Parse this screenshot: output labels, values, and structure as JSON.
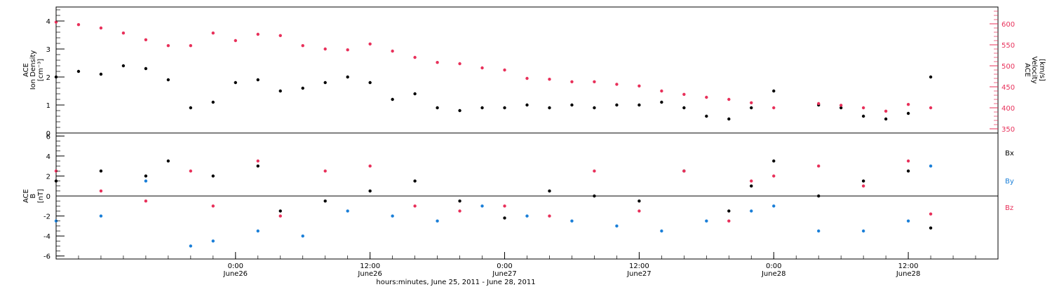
{
  "colors": {
    "density": "#000000",
    "velocity": "#e8305a",
    "bx": "#000000",
    "by": "#1a7fd8",
    "bz": "#e8305a"
  },
  "xaxis": {
    "label": "hours:minutes, June 25, 2011 - June 28, 2011",
    "range": [
      "2011-06-25 08:00",
      "2011-06-28 20:00"
    ],
    "ticks": [
      {
        "time": "2011-06-26 00:00",
        "line1": "0:00",
        "line2": "June26"
      },
      {
        "time": "2011-06-26 12:00",
        "line1": "12:00",
        "line2": "June26"
      },
      {
        "time": "2011-06-27 00:00",
        "line1": "0:00",
        "line2": "June27"
      },
      {
        "time": "2011-06-27 12:00",
        "line1": "12:00",
        "line2": "June27"
      },
      {
        "time": "2011-06-28 00:00",
        "line1": "0:00",
        "line2": "June28"
      },
      {
        "time": "2011-06-28 12:00",
        "line1": "12:00",
        "line2": "June28"
      }
    ]
  },
  "chart_data": [
    {
      "type": "scatter",
      "panel": "top",
      "ylabel_left": [
        "ACE",
        "Ion Density",
        "[cm⁻³]"
      ],
      "ylabel_right": [
        "ACE",
        "Velocity",
        "[km/s]"
      ],
      "ylim_left": [
        0,
        4.5
      ],
      "yticks_left": [
        "0",
        "1",
        "2",
        "3",
        "4"
      ],
      "ylim_right": [
        340,
        640
      ],
      "yticks_right": [
        "350",
        "400",
        "450",
        "500",
        "550",
        "600"
      ],
      "series": [
        {
          "axis": "left",
          "points": [
            [
              "2011-06-25 08:00",
              2.0
            ],
            [
              "2011-06-25 10:00",
              2.2
            ],
            [
              "2011-06-25 12:00",
              2.1
            ],
            [
              "2011-06-25 14:00",
              2.4
            ],
            [
              "2011-06-25 16:00",
              2.3
            ],
            [
              "2011-06-25 18:00",
              1.9
            ],
            [
              "2011-06-25 20:00",
              0.9
            ],
            [
              "2011-06-25 22:00",
              1.1
            ],
            [
              "2011-06-26 00:00",
              1.8
            ],
            [
              "2011-06-26 02:00",
              1.9
            ],
            [
              "2011-06-26 04:00",
              1.5
            ],
            [
              "2011-06-26 06:00",
              1.6
            ],
            [
              "2011-06-26 08:00",
              1.8
            ],
            [
              "2011-06-26 10:00",
              2.0
            ],
            [
              "2011-06-26 12:00",
              1.8
            ],
            [
              "2011-06-26 14:00",
              1.2
            ],
            [
              "2011-06-26 16:00",
              1.4
            ],
            [
              "2011-06-26 18:00",
              0.9
            ],
            [
              "2011-06-26 20:00",
              0.8
            ],
            [
              "2011-06-26 22:00",
              0.9
            ],
            [
              "2011-06-27 00:00",
              0.9
            ],
            [
              "2011-06-27 02:00",
              1.0
            ],
            [
              "2011-06-27 04:00",
              0.9
            ],
            [
              "2011-06-27 06:00",
              1.0
            ],
            [
              "2011-06-27 08:00",
              0.9
            ],
            [
              "2011-06-27 10:00",
              1.0
            ],
            [
              "2011-06-27 12:00",
              1.0
            ],
            [
              "2011-06-27 14:00",
              1.1
            ],
            [
              "2011-06-27 16:00",
              0.9
            ],
            [
              "2011-06-27 18:00",
              0.6
            ],
            [
              "2011-06-27 20:00",
              0.5
            ],
            [
              "2011-06-27 22:00",
              0.9
            ],
            [
              "2011-06-28 00:00",
              1.5
            ],
            [
              "2011-06-28 04:00",
              1.0
            ],
            [
              "2011-06-28 06:00",
              0.9
            ],
            [
              "2011-06-28 08:00",
              0.6
            ],
            [
              "2011-06-28 10:00",
              0.5
            ],
            [
              "2011-06-28 12:00",
              0.7
            ],
            [
              "2011-06-28 14:00",
              2.0
            ]
          ]
        },
        {
          "axis": "right",
          "points": [
            [
              "2011-06-25 08:00",
              604
            ],
            [
              "2011-06-25 10:00",
              598
            ],
            [
              "2011-06-25 12:00",
              590
            ],
            [
              "2011-06-25 14:00",
              578
            ],
            [
              "2011-06-25 16:00",
              562
            ],
            [
              "2011-06-25 18:00",
              548
            ],
            [
              "2011-06-25 20:00",
              548
            ],
            [
              "2011-06-25 22:00",
              578
            ],
            [
              "2011-06-26 00:00",
              560
            ],
            [
              "2011-06-26 02:00",
              575
            ],
            [
              "2011-06-26 04:00",
              572
            ],
            [
              "2011-06-26 06:00",
              548
            ],
            [
              "2011-06-26 08:00",
              540
            ],
            [
              "2011-06-26 10:00",
              538
            ],
            [
              "2011-06-26 12:00",
              552
            ],
            [
              "2011-06-26 14:00",
              535
            ],
            [
              "2011-06-26 16:00",
              520
            ],
            [
              "2011-06-26 18:00",
              508
            ],
            [
              "2011-06-26 20:00",
              505
            ],
            [
              "2011-06-26 22:00",
              495
            ],
            [
              "2011-06-27 00:00",
              490
            ],
            [
              "2011-06-27 02:00",
              470
            ],
            [
              "2011-06-27 04:00",
              468
            ],
            [
              "2011-06-27 06:00",
              462
            ],
            [
              "2011-06-27 08:00",
              462
            ],
            [
              "2011-06-27 10:00",
              456
            ],
            [
              "2011-06-27 12:00",
              452
            ],
            [
              "2011-06-27 14:00",
              440
            ],
            [
              "2011-06-27 16:00",
              432
            ],
            [
              "2011-06-27 18:00",
              425
            ],
            [
              "2011-06-27 20:00",
              420
            ],
            [
              "2011-06-27 22:00",
              412
            ],
            [
              "2011-06-28 00:00",
              400
            ],
            [
              "2011-06-28 04:00",
              410
            ],
            [
              "2011-06-28 06:00",
              406
            ],
            [
              "2011-06-28 08:00",
              400
            ],
            [
              "2011-06-28 10:00",
              392
            ],
            [
              "2011-06-28 12:00",
              408
            ],
            [
              "2011-06-28 14:00",
              400
            ]
          ]
        }
      ]
    },
    {
      "type": "scatter",
      "panel": "bottom",
      "ylabel": [
        "ACE",
        "B",
        "[nT]"
      ],
      "ylim": [
        -6.3,
        6.3
      ],
      "yticks": [
        "-6",
        "-4",
        "-2",
        "0",
        "2",
        "4",
        "6"
      ],
      "series": [
        {
          "name": "Bx",
          "points": [
            [
              "2011-06-25 08:00",
              1.5
            ],
            [
              "2011-06-25 12:00",
              2.5
            ],
            [
              "2011-06-25 16:00",
              2.0
            ],
            [
              "2011-06-25 18:00",
              3.5
            ],
            [
              "2011-06-25 22:00",
              2.0
            ],
            [
              "2011-06-26 02:00",
              3.0
            ],
            [
              "2011-06-26 04:00",
              -1.5
            ],
            [
              "2011-06-26 08:00",
              -0.5
            ],
            [
              "2011-06-26 12:00",
              0.5
            ],
            [
              "2011-06-26 16:00",
              1.5
            ],
            [
              "2011-06-26 20:00",
              -0.5
            ],
            [
              "2011-06-27 00:00",
              -2.2
            ],
            [
              "2011-06-27 04:00",
              0.5
            ],
            [
              "2011-06-27 08:00",
              0.0
            ],
            [
              "2011-06-27 12:00",
              -0.5
            ],
            [
              "2011-06-27 16:00",
              2.5
            ],
            [
              "2011-06-27 20:00",
              -1.5
            ],
            [
              "2011-06-27 22:00",
              1.0
            ],
            [
              "2011-06-28 00:00",
              3.5
            ],
            [
              "2011-06-28 04:00",
              0.0
            ],
            [
              "2011-06-28 08:00",
              1.5
            ],
            [
              "2011-06-28 12:00",
              2.5
            ],
            [
              "2011-06-28 14:00",
              -3.2
            ]
          ]
        },
        {
          "name": "By",
          "points": [
            [
              "2011-06-25 08:00",
              -2.5
            ],
            [
              "2011-06-25 12:00",
              -2.0
            ],
            [
              "2011-06-25 16:00",
              1.5
            ],
            [
              "2011-06-25 20:00",
              -5.0
            ],
            [
              "2011-06-25 22:00",
              -4.5
            ],
            [
              "2011-06-26 02:00",
              -3.5
            ],
            [
              "2011-06-26 06:00",
              -4.0
            ],
            [
              "2011-06-26 10:00",
              -1.5
            ],
            [
              "2011-06-26 14:00",
              -2.0
            ],
            [
              "2011-06-26 18:00",
              -2.5
            ],
            [
              "2011-06-26 22:00",
              -1.0
            ],
            [
              "2011-06-27 02:00",
              -2.0
            ],
            [
              "2011-06-27 06:00",
              -2.5
            ],
            [
              "2011-06-27 10:00",
              -3.0
            ],
            [
              "2011-06-27 14:00",
              -3.5
            ],
            [
              "2011-06-27 18:00",
              -2.5
            ],
            [
              "2011-06-27 22:00",
              -1.5
            ],
            [
              "2011-06-28 00:00",
              -1.0
            ],
            [
              "2011-06-28 04:00",
              -3.5
            ],
            [
              "2011-06-28 08:00",
              -3.5
            ],
            [
              "2011-06-28 12:00",
              -2.5
            ],
            [
              "2011-06-28 14:00",
              3.0
            ]
          ]
        },
        {
          "name": "Bz",
          "points": [
            [
              "2011-06-25 08:00",
              2.5
            ],
            [
              "2011-06-25 12:00",
              0.5
            ],
            [
              "2011-06-25 16:00",
              -0.5
            ],
            [
              "2011-06-25 20:00",
              2.5
            ],
            [
              "2011-06-25 22:00",
              -1.0
            ],
            [
              "2011-06-26 02:00",
              3.5
            ],
            [
              "2011-06-26 04:00",
              -2.0
            ],
            [
              "2011-06-26 08:00",
              2.5
            ],
            [
              "2011-06-26 12:00",
              3.0
            ],
            [
              "2011-06-26 16:00",
              -1.0
            ],
            [
              "2011-06-26 20:00",
              -1.5
            ],
            [
              "2011-06-27 00:00",
              -1.0
            ],
            [
              "2011-06-27 04:00",
              -2.0
            ],
            [
              "2011-06-27 08:00",
              2.5
            ],
            [
              "2011-06-27 12:00",
              -1.5
            ],
            [
              "2011-06-27 16:00",
              2.5
            ],
            [
              "2011-06-27 20:00",
              -2.5
            ],
            [
              "2011-06-27 22:00",
              1.5
            ],
            [
              "2011-06-28 00:00",
              2.0
            ],
            [
              "2011-06-28 04:00",
              3.0
            ],
            [
              "2011-06-28 08:00",
              1.0
            ],
            [
              "2011-06-28 12:00",
              3.5
            ],
            [
              "2011-06-28 14:00",
              -1.8
            ]
          ]
        }
      ]
    }
  ]
}
